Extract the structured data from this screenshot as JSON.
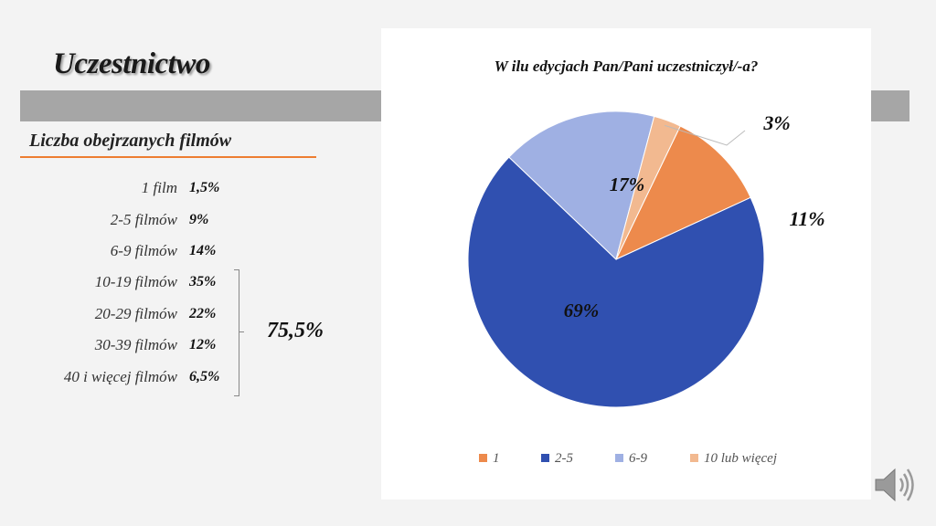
{
  "slide": {
    "title": "Uczestnictwo",
    "section_heading": "Liczba obejrzanych filmów"
  },
  "film_counts": [
    {
      "label": "1 film",
      "value": "1,5%"
    },
    {
      "label": "2-5 filmów",
      "value": "9%"
    },
    {
      "label": "6-9 filmów",
      "value": "14%"
    },
    {
      "label": "10-19 filmów",
      "value": "35%"
    },
    {
      "label": "20-29 filmów",
      "value": "22%"
    },
    {
      "label": "30-39 filmów",
      "value": "12%"
    },
    {
      "label": "40 i więcej filmów",
      "value": "6,5%"
    }
  ],
  "bracket_sum": "75,5%",
  "chart_data": {
    "type": "pie",
    "title": "W ilu edycjach Pan/Pani uczestniczył/-a?",
    "categories": [
      "1",
      "2-5",
      "6-9",
      "10 lub więcej"
    ],
    "values": [
      11,
      69,
      17,
      3
    ],
    "data_labels": [
      "11%",
      "69%",
      "17%",
      "3%"
    ],
    "colors": [
      "#ed8a4c",
      "#3050b0",
      "#9fb0e3",
      "#f2b990"
    ],
    "legend_position": "bottom"
  },
  "icons": {
    "speaker": "speaker-icon"
  }
}
